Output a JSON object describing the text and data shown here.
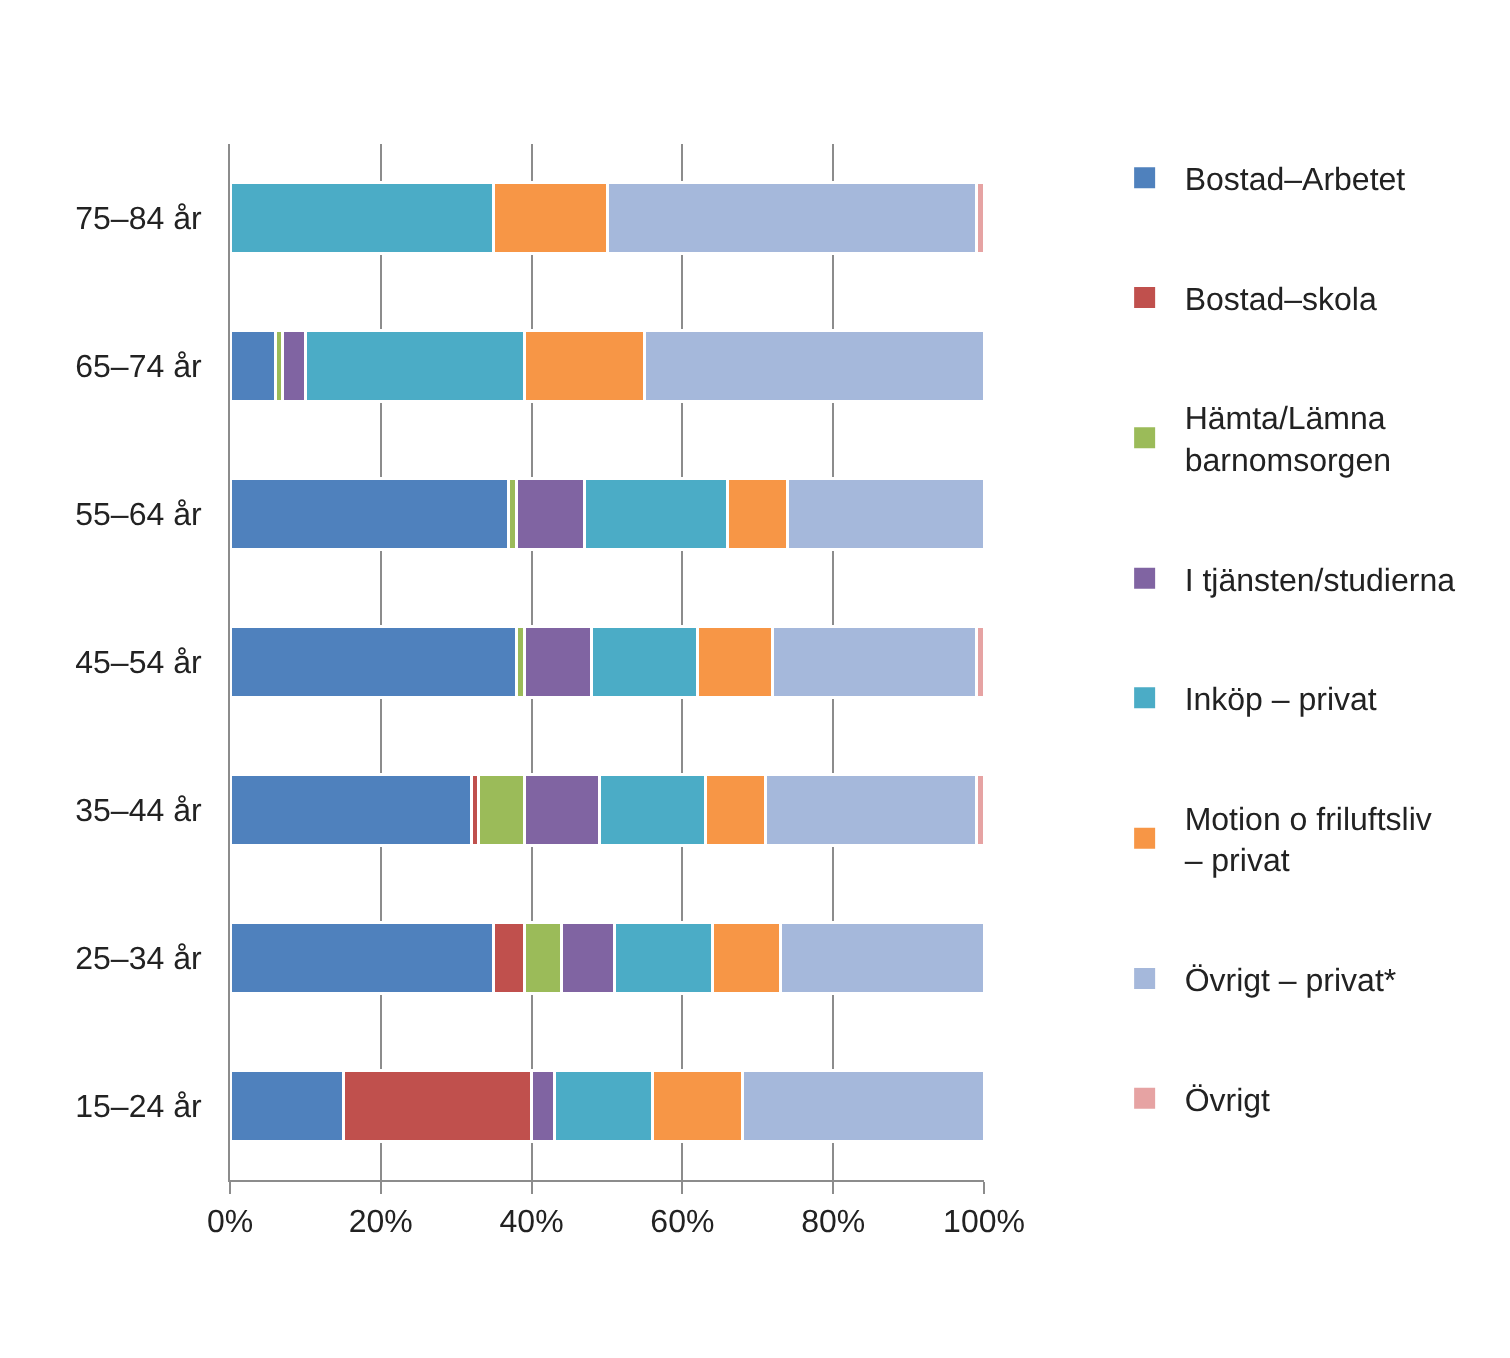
{
  "chart_data": {
    "type": "bar",
    "orientation": "horizontal",
    "stacked": true,
    "categories": [
      "75–84 år",
      "65–74 år",
      "55–64 år",
      "45–54 år",
      "35–44 år",
      "25–34 år",
      "15–24 år"
    ],
    "series": [
      {
        "name": "Bostad–Arbetet",
        "color": "#4f81bd",
        "values": [
          null,
          6,
          37,
          38,
          32,
          35,
          15
        ]
      },
      {
        "name": "Bostad–skola",
        "color": "#c0504d",
        "values": [
          null,
          null,
          null,
          null,
          1,
          4,
          25
        ]
      },
      {
        "name": "Hämta/Lämna barnomsorgen",
        "color": "#9bbb59",
        "values": [
          null,
          1,
          1,
          1,
          6,
          5,
          null
        ]
      },
      {
        "name": "I tjänsten/studierna",
        "color": "#8064a2",
        "values": [
          null,
          3,
          9,
          9,
          10,
          7,
          3
        ]
      },
      {
        "name": "Inköp – privat",
        "color": "#4bacc6",
        "values": [
          35,
          29,
          19,
          14,
          14,
          13,
          13
        ]
      },
      {
        "name": "Motion o friluftsliv – privat",
        "color": "#f79646",
        "values": [
          15,
          16,
          8,
          10,
          8,
          9,
          12
        ]
      },
      {
        "name": "Övrigt – privat*",
        "color": "#a5b8db",
        "values": [
          49,
          45,
          26,
          27,
          28,
          27,
          32
        ]
      },
      {
        "name": "Övrigt",
        "color": "#e6a3a3",
        "values": [
          1,
          null,
          null,
          1,
          1,
          null,
          null
        ]
      }
    ],
    "xlim": [
      0,
      100
    ],
    "xticks": [
      {
        "value": 0,
        "label": "0%"
      },
      {
        "value": 20,
        "label": "20%"
      },
      {
        "value": 40,
        "label": "40%"
      },
      {
        "value": 60,
        "label": "60%"
      },
      {
        "value": 80,
        "label": "80%"
      },
      {
        "value": 100,
        "label": "100%"
      }
    ],
    "grid": "x",
    "legend": "right"
  }
}
